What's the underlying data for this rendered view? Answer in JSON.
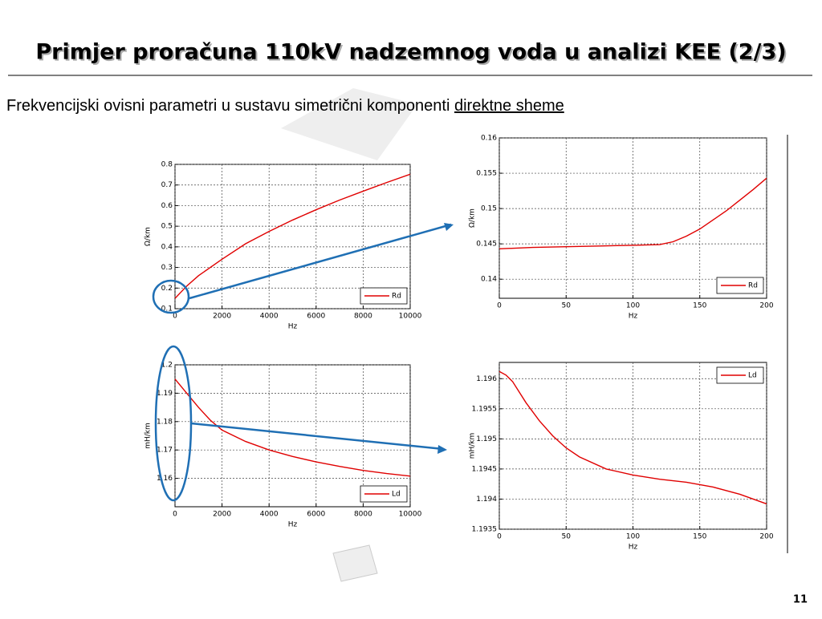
{
  "title": "Primjer proračuna 110kV nadzemnog voda u analizi KEE (2/3)",
  "subtitle": [
    "Frekvencijski ovisni parametri u sustavu simetrični komponenti ",
    "direktne sheme"
  ],
  "page_number": "11",
  "chart_data": [
    {
      "type": "line",
      "xlabel": "Hz",
      "ylabel": "Ω/km",
      "grid": true,
      "legend": "lower right",
      "x": [
        0,
        250,
        500,
        1000,
        2000,
        3000,
        4000,
        5000,
        6000,
        7000,
        8000,
        9000,
        10000
      ],
      "series": [
        {
          "name": "Rd",
          "color": "#e00000",
          "values": [
            0.15,
            0.18,
            0.21,
            0.26,
            0.34,
            0.415,
            0.475,
            0.53,
            0.58,
            0.627,
            0.67,
            0.712,
            0.752
          ]
        }
      ],
      "xlim": [
        0,
        10000
      ],
      "xticks": [
        0,
        2000,
        4000,
        6000,
        8000,
        10000
      ],
      "ylim": [
        0.1,
        0.8
      ],
      "yticks": [
        0.1,
        0.2,
        0.3,
        0.4,
        0.5,
        0.6,
        0.7,
        0.8
      ]
    },
    {
      "type": "line",
      "xlabel": "Hz",
      "ylabel": "Ω/km",
      "grid": true,
      "legend": "lower right",
      "x": [
        0,
        25,
        50,
        75,
        100,
        120,
        130,
        140,
        150,
        160,
        170,
        180,
        190,
        200
      ],
      "series": [
        {
          "name": "Rd",
          "color": "#e00000",
          "values": [
            0.1443,
            0.1445,
            0.1446,
            0.1447,
            0.1448,
            0.1449,
            0.1453,
            0.1461,
            0.1471,
            0.1484,
            0.1497,
            0.1512,
            0.1527,
            0.1543
          ]
        }
      ],
      "xlim": [
        0,
        200
      ],
      "xticks": [
        0,
        50,
        100,
        150,
        200
      ],
      "ylim": [
        0.1373,
        0.16
      ],
      "yticks": [
        0.14,
        0.145,
        0.15,
        0.155,
        0.16
      ]
    },
    {
      "type": "line",
      "xlabel": "Hz",
      "ylabel": "mH/km",
      "grid": true,
      "legend": "lower right",
      "x": [
        0,
        250,
        500,
        1000,
        1500,
        2000,
        3000,
        4000,
        5000,
        6000,
        7000,
        8000,
        9000,
        10000
      ],
      "series": [
        {
          "name": "Ld",
          "color": "#e00000",
          "values": [
            1.195,
            1.1925,
            1.19,
            1.185,
            1.1805,
            1.177,
            1.173,
            1.17,
            1.1677,
            1.1658,
            1.1642,
            1.1628,
            1.1617,
            1.1608
          ]
        }
      ],
      "xlim": [
        0,
        10000
      ],
      "xticks": [
        0,
        2000,
        4000,
        6000,
        8000,
        10000
      ],
      "ylim": [
        1.15,
        1.2
      ],
      "yticks": [
        1.16,
        1.17,
        1.18,
        1.19,
        1.2
      ]
    },
    {
      "type": "line",
      "xlabel": "Hz",
      "ylabel": "mH/km",
      "grid": true,
      "legend": "upper right",
      "x": [
        0,
        5,
        10,
        20,
        30,
        40,
        50,
        60,
        80,
        100,
        120,
        140,
        160,
        180,
        200
      ],
      "series": [
        {
          "name": "Ld",
          "color": "#e00000",
          "values": [
            1.19612,
            1.19606,
            1.19595,
            1.1956,
            1.1953,
            1.19505,
            1.19485,
            1.1947,
            1.1945,
            1.1944,
            1.19433,
            1.19428,
            1.1942,
            1.19408,
            1.19392
          ]
        }
      ],
      "xlim": [
        0,
        200
      ],
      "xticks": [
        0,
        50,
        100,
        150,
        200
      ],
      "ylim": [
        1.1935,
        1.19627
      ],
      "yticks": [
        1.1935,
        1.194,
        1.1945,
        1.195,
        1.1955,
        1.196
      ]
    }
  ]
}
